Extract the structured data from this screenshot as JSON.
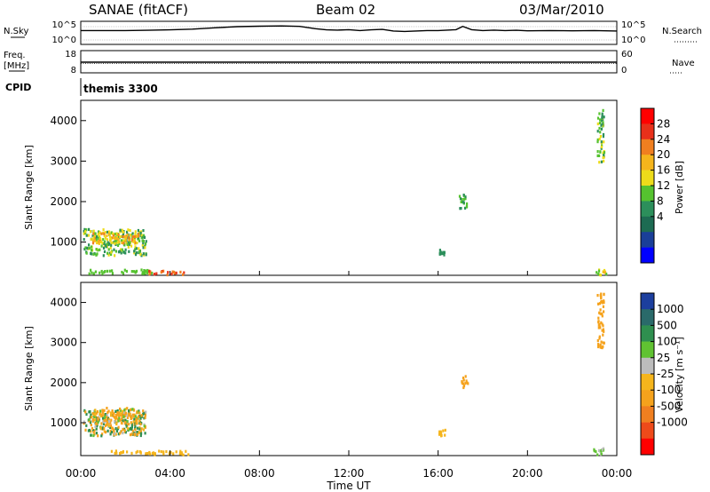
{
  "header": {
    "station": "SANAE (fitACF)",
    "beam": "Beam 02",
    "date": "03/Mar/2010"
  },
  "top_panels": {
    "nsky_label": "N.Sky",
    "nsky_ticks": [
      "10^5",
      "10^0"
    ],
    "nsearch_label": "N.Search",
    "nsearch_ticks": [
      "10^5",
      "10^0"
    ],
    "freq_label": "Freq.",
    "freq_unit": "[MHz]",
    "freq_ticks": [
      "18",
      "8"
    ],
    "nave_label": "Nave",
    "nave_ticks": [
      "60",
      "0"
    ],
    "cpid_label": "CPID",
    "cpid_value": "themis 3300"
  },
  "axes": {
    "xlabel": "Time UT",
    "x_ticks": [
      "00:00",
      "04:00",
      "08:00",
      "12:00",
      "16:00",
      "20:00",
      "00:00"
    ],
    "ylabel": "Slant Range [km]",
    "y_ticks": [
      "4000",
      "3000",
      "2000",
      "1000"
    ]
  },
  "power_colorbar": {
    "label": "Power [dB]",
    "ticks": [
      "28",
      "24",
      "20",
      "16",
      "12",
      "8",
      "4"
    ],
    "colors": [
      "#ff0000",
      "#e8301a",
      "#f07f20",
      "#f5b51c",
      "#eddc1a",
      "#55c22f",
      "#2c8f5b",
      "#1d6b52",
      "#1a3f98",
      "#0000ff"
    ]
  },
  "velocity_colorbar": {
    "label": "Velocity [m s⁻¹]",
    "ticks": [
      "1000",
      "500",
      "100",
      "25",
      "-25",
      "-100",
      "-500",
      "-1000"
    ],
    "colors": [
      "#1c3f9e",
      "#2a6a6a",
      "#2f8f4f",
      "#60c232",
      "#bcbcbc",
      "#f5b51c",
      "#f5a21c",
      "#f07f20",
      "#ee4a1a",
      "#ff0000"
    ]
  },
  "chart_data": {
    "type": "heatmap",
    "x_unit": "hours UT",
    "xlim": [
      0,
      24
    ],
    "ylim": [
      180,
      4500
    ],
    "nsky": {
      "x": [
        0,
        1,
        2,
        3,
        4,
        5,
        6,
        7,
        8,
        9,
        9.8,
        10.5,
        11,
        11.5,
        12,
        12.5,
        13,
        13.5,
        14,
        14.5,
        15,
        15.5,
        16,
        16.8,
        17.1,
        17.5,
        18,
        18.5,
        19,
        19.5,
        20,
        21,
        22,
        23,
        24
      ],
      "y": [
        3.0,
        3.0,
        3.0,
        3.05,
        3.15,
        3.3,
        3.6,
        3.85,
        3.95,
        4.0,
        3.9,
        3.4,
        3.15,
        3.1,
        3.2,
        3.0,
        3.15,
        3.25,
        2.9,
        2.8,
        2.9,
        3.0,
        3.0,
        3.2,
        3.9,
        3.2,
        3.0,
        3.1,
        3.0,
        3.05,
        2.95,
        3.0,
        2.95,
        3.0,
        2.9
      ]
    },
    "freq_mhz": 11,
    "series": [
      {
        "name": "Power [dB]",
        "clusters": [
          {
            "t": [
              0.1,
              2.9
            ],
            "r": [
              700,
              1350
            ],
            "level": [
              4,
              16
            ]
          },
          {
            "t": [
              0.5,
              2.6
            ],
            "r": [
              1000,
              1250
            ],
            "level": [
              12,
              24
            ]
          },
          {
            "t": [
              0.3,
              3.2
            ],
            "r": [
              250,
              350
            ],
            "level": [
              8,
              12
            ]
          },
          {
            "t": [
              3.0,
              4.6
            ],
            "r": [
              220,
              320
            ],
            "level": [
              20,
              28
            ]
          },
          {
            "t": [
              16.9,
              17.3
            ],
            "r": [
              1850,
              2200
            ],
            "level": [
              4,
              12
            ]
          },
          {
            "t": [
              16.0,
              16.3
            ],
            "r": [
              700,
              850
            ],
            "level": [
              4,
              8
            ]
          },
          {
            "t": [
              22.9,
              23.5
            ],
            "r": [
              220,
              350
            ],
            "level": [
              8,
              20
            ]
          },
          {
            "t": [
              23.1,
              23.4
            ],
            "r": [
              3000,
              4300
            ],
            "level": [
              4,
              16
            ]
          }
        ]
      },
      {
        "name": "Velocity [m s⁻¹]",
        "clusters": [
          {
            "t": [
              0.1,
              2.9
            ],
            "r": [
              700,
              1350
            ],
            "level": [
              -500,
              500
            ]
          },
          {
            "t": [
              0.5,
              2.6
            ],
            "r": [
              1000,
              1400
            ],
            "level": [
              -500,
              100
            ]
          },
          {
            "t": [
              1.2,
              4.8
            ],
            "r": [
              230,
              330
            ],
            "level": [
              -100,
              -25
            ]
          },
          {
            "t": [
              17.0,
              17.3
            ],
            "r": [
              1900,
              2200
            ],
            "level": [
              -500,
              -100
            ]
          },
          {
            "t": [
              16.0,
              16.3
            ],
            "r": [
              700,
              850
            ],
            "level": [
              -100,
              -25
            ]
          },
          {
            "t": [
              22.9,
              23.5
            ],
            "r": [
              220,
              400
            ],
            "level": [
              -25,
              100
            ]
          },
          {
            "t": [
              23.1,
              23.4
            ],
            "r": [
              2900,
              4300
            ],
            "level": [
              -500,
              -100
            ]
          }
        ]
      }
    ]
  }
}
